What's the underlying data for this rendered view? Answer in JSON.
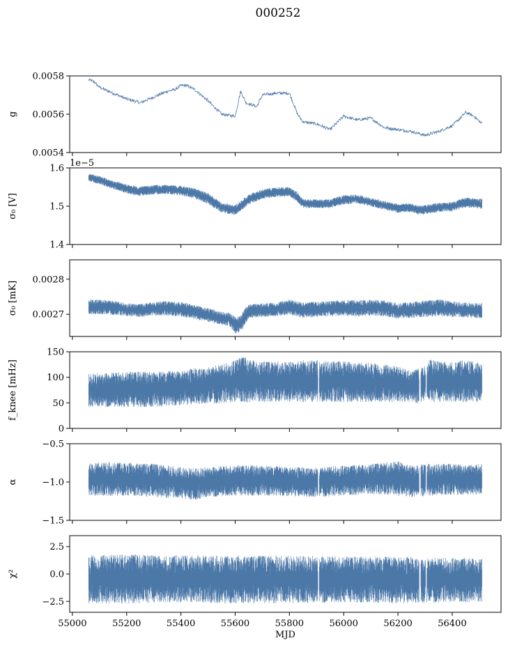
{
  "title": "000252",
  "series_color": "#4c78a8",
  "chart_data": [
    {
      "type": "line",
      "ylabel": "g",
      "ylim": [
        0.0054,
        0.0058
      ],
      "yticks": [
        0.0054,
        0.0056,
        0.0058
      ],
      "ytick_labels": [
        "0.0054",
        "0.0056",
        "0.0058"
      ],
      "offset_text": "",
      "noise": 8e-06,
      "x": [
        55060,
        55080,
        55100,
        55150,
        55200,
        55250,
        55300,
        55350,
        55380,
        55400,
        55420,
        55450,
        55500,
        55550,
        55600,
        55620,
        55640,
        55680,
        55700,
        55750,
        55800,
        55830,
        55850,
        55900,
        55950,
        56000,
        56050,
        56100,
        56150,
        56200,
        56250,
        56300,
        56350,
        56400,
        56430,
        56450,
        56480,
        56510
      ],
      "y": [
        0.00578,
        0.00577,
        0.00574,
        0.00571,
        0.00568,
        0.00566,
        0.00569,
        0.00572,
        0.00573,
        0.00575,
        0.00575,
        0.00573,
        0.00567,
        0.0056,
        0.00559,
        0.00572,
        0.00566,
        0.00564,
        0.0057,
        0.00571,
        0.00571,
        0.0056,
        0.00556,
        0.00555,
        0.00552,
        0.00559,
        0.00557,
        0.00558,
        0.00553,
        0.00552,
        0.00551,
        0.00549,
        0.00551,
        0.00554,
        0.00558,
        0.00561,
        0.00559,
        0.00555
      ]
    },
    {
      "type": "area",
      "ylabel": "σ₀ [V]",
      "ylim": [
        1.4e-05,
        1.6e-05
      ],
      "yticks": [
        1.4e-05,
        1.5e-05,
        1.6e-05
      ],
      "ytick_labels": [
        "1.4",
        "1.5",
        "1.6"
      ],
      "offset_text": "1e−5",
      "x": [
        55060,
        55100,
        55150,
        55200,
        55250,
        55300,
        55350,
        55400,
        55450,
        55500,
        55550,
        55600,
        55650,
        55700,
        55750,
        55800,
        55830,
        55850,
        55900,
        55950,
        56000,
        56050,
        56100,
        56150,
        56200,
        56250,
        56280,
        56300,
        56350,
        56400,
        56450,
        56510
      ],
      "lo": [
        1.566e-05,
        1.558e-05,
        1.546e-05,
        1.534e-05,
        1.527e-05,
        1.532e-05,
        1.533e-05,
        1.529e-05,
        1.521e-05,
        1.507e-05,
        1.484e-05,
        1.478e-05,
        1.505e-05,
        1.52e-05,
        1.525e-05,
        1.526e-05,
        1.512e-05,
        1.496e-05,
        1.496e-05,
        1.496e-05,
        1.505e-05,
        1.508e-05,
        1.5e-05,
        1.492e-05,
        1.484e-05,
        1.486e-05,
        1.478e-05,
        1.48e-05,
        1.486e-05,
        1.488e-05,
        1.498e-05,
        1.494e-05
      ],
      "hi": [
        1.585e-05,
        1.578e-05,
        1.566e-05,
        1.556e-05,
        1.55e-05,
        1.554e-05,
        1.555e-05,
        1.552e-05,
        1.546e-05,
        1.533e-05,
        1.508e-05,
        1.502e-05,
        1.53e-05,
        1.543e-05,
        1.548e-05,
        1.549e-05,
        1.536e-05,
        1.517e-05,
        1.517e-05,
        1.517e-05,
        1.528e-05,
        1.53e-05,
        1.521e-05,
        1.513e-05,
        1.505e-05,
        1.507e-05,
        1.5e-05,
        1.502e-05,
        1.508e-05,
        1.51e-05,
        1.522e-05,
        1.518e-05
      ]
    },
    {
      "type": "area",
      "ylabel": "σ₀ [mK]",
      "ylim": [
        0.002637,
        0.002855
      ],
      "yticks": [
        0.0027,
        0.0028
      ],
      "ytick_labels": [
        "0.0027",
        "0.0028"
      ],
      "offset_text": "",
      "x": [
        55060,
        55100,
        55150,
        55200,
        55250,
        55300,
        55350,
        55400,
        55450,
        55500,
        55550,
        55580,
        55600,
        55620,
        55640,
        55650,
        55700,
        55750,
        55800,
        55850,
        55900,
        55950,
        56000,
        56050,
        56100,
        56150,
        56200,
        56250,
        56300,
        56350,
        56400,
        56450,
        56510
      ],
      "lo": [
        0.0027,
        0.002702,
        0.0027,
        0.002696,
        0.002694,
        0.002698,
        0.002698,
        0.002694,
        0.002688,
        0.00268,
        0.002672,
        0.002668,
        0.002648,
        0.00265,
        0.002678,
        0.00269,
        0.002694,
        0.002696,
        0.0027,
        0.002692,
        0.002694,
        0.002696,
        0.002698,
        0.002696,
        0.002698,
        0.002696,
        0.00269,
        0.002692,
        0.002694,
        0.002696,
        0.002694,
        0.002692,
        0.00269
      ],
      "hi": [
        0.00274,
        0.002742,
        0.002738,
        0.00273,
        0.002728,
        0.002734,
        0.002736,
        0.002734,
        0.002726,
        0.002716,
        0.002706,
        0.002702,
        0.00269,
        0.002694,
        0.00272,
        0.002728,
        0.00273,
        0.002732,
        0.00274,
        0.002732,
        0.002734,
        0.002736,
        0.00274,
        0.002738,
        0.00274,
        0.002738,
        0.00273,
        0.002734,
        0.002738,
        0.00274,
        0.002736,
        0.002732,
        0.00273
      ]
    },
    {
      "type": "area",
      "ylabel": "f_knee [mHz]",
      "ylim": [
        0,
        150
      ],
      "yticks": [
        0,
        50,
        100,
        150
      ],
      "ytick_labels": [
        "0",
        "50",
        "100",
        "150"
      ],
      "offset_text": "",
      "gaps": [
        [
          55905,
          55910
        ],
        [
          56278,
          56284
        ],
        [
          56302,
          56306
        ]
      ],
      "x": [
        55060,
        55100,
        55200,
        55300,
        55400,
        55450,
        55500,
        55550,
        55600,
        55620,
        55650,
        55700,
        55800,
        55850,
        55900,
        55950,
        56000,
        56100,
        56150,
        56200,
        56250,
        56280,
        56300,
        56320,
        56350,
        56400,
        56450,
        56510
      ],
      "lo": [
        45,
        45,
        45,
        45,
        48,
        50,
        52,
        52,
        55,
        55,
        55,
        55,
        55,
        55,
        55,
        55,
        55,
        55,
        55,
        55,
        55,
        50,
        60,
        55,
        55,
        55,
        55,
        55
      ],
      "hi": [
        105,
        105,
        108,
        108,
        110,
        115,
        118,
        122,
        130,
        140,
        132,
        128,
        128,
        130,
        130,
        128,
        128,
        125,
        122,
        118,
        110,
        115,
        120,
        132,
        128,
        128,
        130,
        125
      ]
    },
    {
      "type": "area",
      "ylabel": "α",
      "ylim": [
        -1.5,
        -0.5
      ],
      "yticks": [
        -1.5,
        -1.0,
        -0.5
      ],
      "ytick_labels": [
        "−1.5",
        "−1.0",
        "−0.5"
      ],
      "offset_text": "",
      "gaps": [
        [
          55905,
          55910
        ],
        [
          56278,
          56284
        ],
        [
          56302,
          56306
        ]
      ],
      "x": [
        55060,
        55100,
        55200,
        55300,
        55400,
        55450,
        55500,
        55600,
        55700,
        55800,
        55900,
        56000,
        56100,
        56150,
        56200,
        56250,
        56300,
        56350,
        56400,
        56450,
        56510
      ],
      "lo": [
        -1.16,
        -1.16,
        -1.16,
        -1.18,
        -1.2,
        -1.22,
        -1.18,
        -1.16,
        -1.16,
        -1.17,
        -1.18,
        -1.16,
        -1.14,
        -1.15,
        -1.16,
        -1.18,
        -1.17,
        -1.15,
        -1.15,
        -1.15,
        -1.14
      ],
      "hi": [
        -0.78,
        -0.76,
        -0.76,
        -0.78,
        -0.82,
        -0.84,
        -0.82,
        -0.8,
        -0.8,
        -0.82,
        -0.82,
        -0.8,
        -0.78,
        -0.76,
        -0.74,
        -0.8,
        -0.78,
        -0.78,
        -0.78,
        -0.79,
        -0.78
      ]
    },
    {
      "type": "area",
      "ylabel": "χ²",
      "ylim": [
        -3.5,
        3.5
      ],
      "yticks": [
        -2.5,
        0.0,
        2.5
      ],
      "ytick_labels": [
        "−2.5",
        "0.0",
        "2.5"
      ],
      "offset_text": "",
      "xlabel": "MJD",
      "xticks": [
        55000,
        55200,
        55400,
        55600,
        55800,
        56000,
        56200,
        56400
      ],
      "xtick_labels": [
        "55000",
        "55200",
        "55400",
        "55600",
        "55800",
        "56000",
        "56200",
        "56400"
      ],
      "gaps": [
        [
          55905,
          55910
        ],
        [
          56278,
          56284
        ],
        [
          56302,
          56306
        ]
      ],
      "x": [
        55060,
        55200,
        55400,
        55600,
        55800,
        56000,
        56200,
        56400,
        56510
      ],
      "lo": [
        -2.5,
        -2.5,
        -2.4,
        -2.5,
        -2.5,
        -2.4,
        -2.5,
        -2.4,
        -2.4
      ],
      "hi": [
        1.5,
        1.6,
        1.5,
        1.5,
        1.5,
        1.4,
        1.4,
        1.3,
        1.3
      ]
    }
  ]
}
